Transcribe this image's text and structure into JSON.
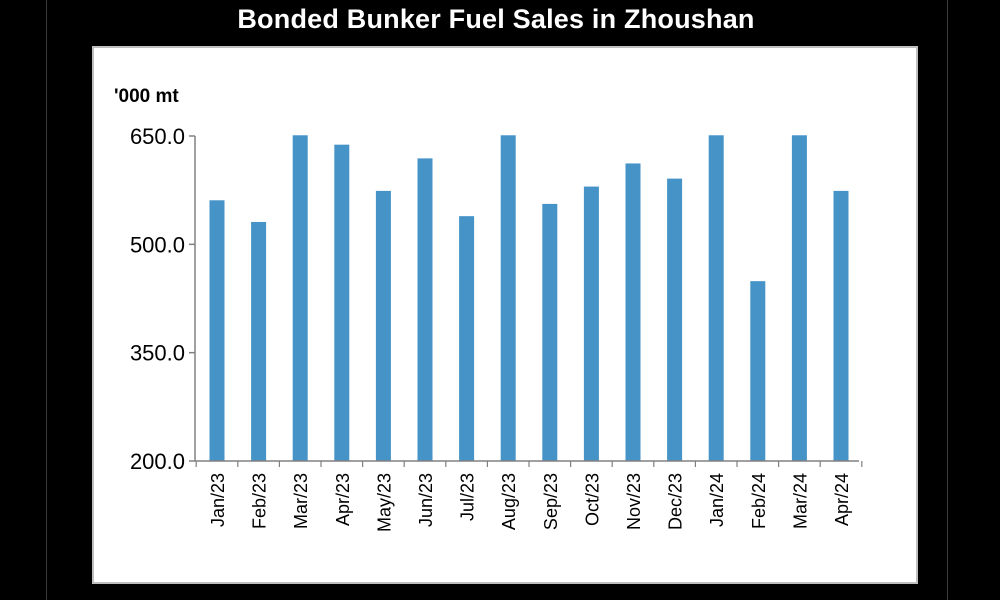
{
  "chart_data": {
    "type": "bar",
    "title": "Bonded Bunker Fuel Sales in Zhoushan",
    "unit_label": "'000 mt",
    "xlabel": "",
    "ylabel": "",
    "ylim": [
      200,
      650
    ],
    "yticks": [
      "200.0",
      "350.0",
      "500.0",
      "650.0"
    ],
    "ytick_values": [
      200,
      350,
      500,
      650
    ],
    "grid": false,
    "legend": "none",
    "bar_color": "#4693c8",
    "categories": [
      "Jan/23",
      "Feb/23",
      "Mar/23",
      "Apr/23",
      "May/23",
      "Jun/23",
      "Jul/23",
      "Aug/23",
      "Sep/23",
      "Oct/23",
      "Nov/23",
      "Dec/23",
      "Jan/24",
      "Feb/24",
      "Mar/24",
      "Apr/24"
    ],
    "values": [
      561,
      531,
      651,
      638,
      574,
      619,
      539,
      651,
      556,
      580,
      612,
      591,
      651,
      449,
      651,
      574
    ]
  }
}
